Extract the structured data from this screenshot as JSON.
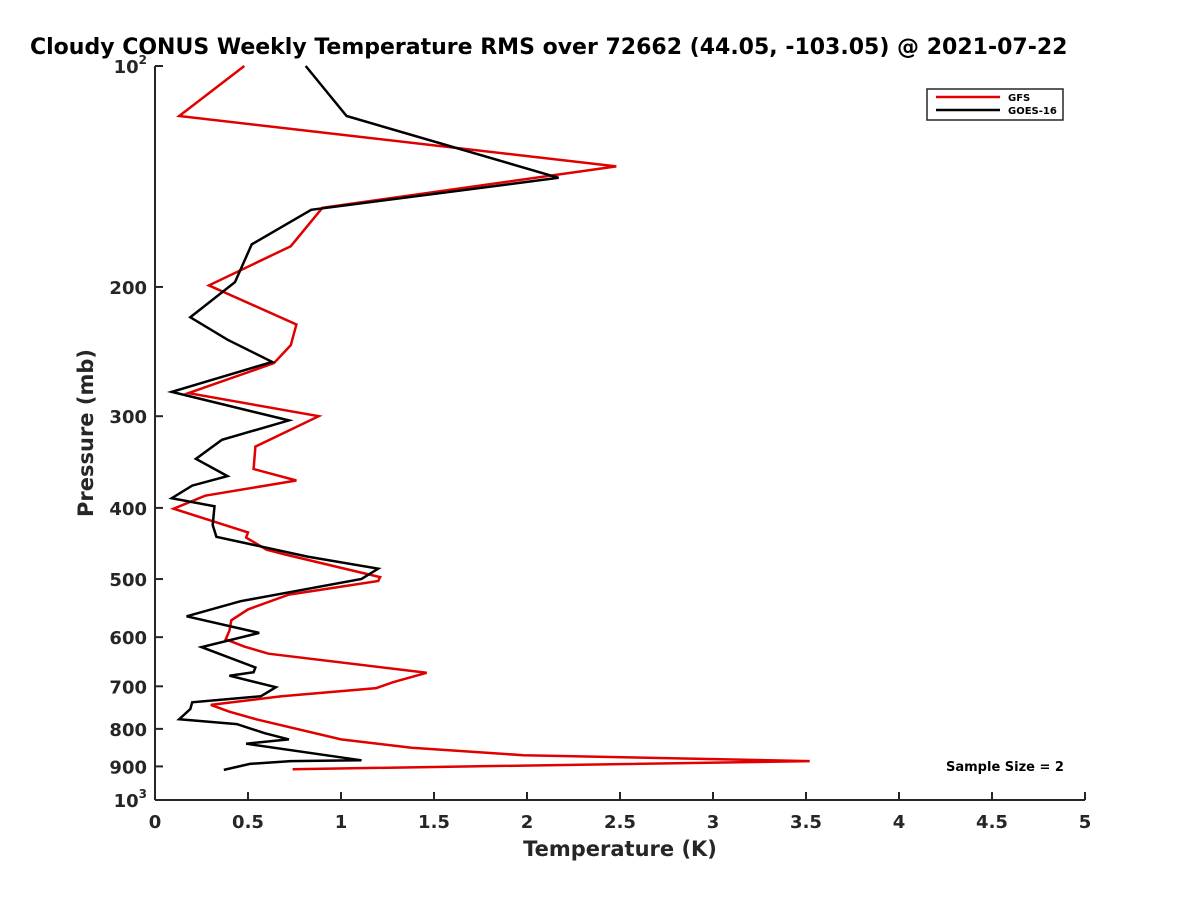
{
  "chart_data": {
    "type": "line",
    "title": "Cloudy CONUS Weekly Temperature RMS over 72662 (44.05, -103.05) @ 2021-07-22",
    "xlabel": "Temperature (K)",
    "ylabel": "Pressure (mb)",
    "xlim": [
      0,
      5
    ],
    "ylim": [
      100,
      1000
    ],
    "y_scale": "log",
    "y_reversed": true,
    "grid": false,
    "legend_position": "top-right",
    "annotation": "Sample Size = 2",
    "xticks": [
      0,
      0.5,
      1,
      1.5,
      2,
      2.5,
      3,
      3.5,
      4,
      4.5,
      5
    ],
    "xtick_labels": [
      "0",
      "0.5",
      "1",
      "1.5",
      "2",
      "2.5",
      "3",
      "3.5",
      "4",
      "4.5",
      "5"
    ],
    "yticks": [
      {
        "value": 100,
        "base": "10",
        "exp": "2"
      },
      {
        "value": 200,
        "base": "200",
        "exp": ""
      },
      {
        "value": 300,
        "base": "300",
        "exp": ""
      },
      {
        "value": 400,
        "base": "400",
        "exp": ""
      },
      {
        "value": 500,
        "base": "500",
        "exp": ""
      },
      {
        "value": 600,
        "base": "600",
        "exp": ""
      },
      {
        "value": 700,
        "base": "700",
        "exp": ""
      },
      {
        "value": 800,
        "base": "800",
        "exp": ""
      },
      {
        "value": 900,
        "base": "900",
        "exp": ""
      },
      {
        "value": 1000,
        "base": "10",
        "exp": "3"
      }
    ],
    "series": [
      {
        "name": "GFS",
        "color": "#e00000",
        "points": [
          [
            0.48,
            100
          ],
          [
            0.13,
            117
          ],
          [
            2.48,
            137
          ],
          [
            0.9,
            156
          ],
          [
            0.73,
            176
          ],
          [
            0.29,
            199
          ],
          [
            0.76,
            225
          ],
          [
            0.73,
            240
          ],
          [
            0.64,
            254
          ],
          [
            0.18,
            279
          ],
          [
            0.88,
            300
          ],
          [
            0.54,
            330
          ],
          [
            0.53,
            354
          ],
          [
            0.76,
            367
          ],
          [
            0.27,
            385
          ],
          [
            0.1,
            401
          ],
          [
            0.5,
            432
          ],
          [
            0.49,
            439
          ],
          [
            0.6,
            456
          ],
          [
            0.7,
            463
          ],
          [
            1.21,
            497
          ],
          [
            1.2,
            503
          ],
          [
            0.72,
            525
          ],
          [
            0.5,
            550
          ],
          [
            0.41,
            569
          ],
          [
            0.4,
            588
          ],
          [
            0.38,
            604
          ],
          [
            0.48,
            618
          ],
          [
            0.61,
            632
          ],
          [
            1.46,
            671
          ],
          [
            1.28,
            691
          ],
          [
            1.19,
            704
          ],
          [
            0.68,
            722
          ],
          [
            0.3,
            742
          ],
          [
            0.4,
            758
          ],
          [
            0.55,
            777
          ],
          [
            1.0,
            827
          ],
          [
            1.38,
            849
          ],
          [
            1.98,
            869
          ],
          [
            3.52,
            885
          ],
          [
            0.74,
            908
          ]
        ]
      },
      {
        "name": "GOES-16",
        "color": "#000000",
        "points": [
          [
            0.81,
            100
          ],
          [
            1.03,
            117
          ],
          [
            2.17,
            142
          ],
          [
            0.84,
            157
          ],
          [
            0.52,
            175
          ],
          [
            0.43,
            197
          ],
          [
            0.19,
            220
          ],
          [
            0.39,
            236
          ],
          [
            0.63,
            253
          ],
          [
            0.09,
            278
          ],
          [
            0.72,
            304
          ],
          [
            0.36,
            323
          ],
          [
            0.22,
            343
          ],
          [
            0.39,
            362
          ],
          [
            0.2,
            373
          ],
          [
            0.09,
            388
          ],
          [
            0.32,
            398
          ],
          [
            0.31,
            422
          ],
          [
            0.33,
            438
          ],
          [
            0.82,
            466
          ],
          [
            1.2,
            484
          ],
          [
            1.11,
            500
          ],
          [
            0.46,
            536
          ],
          [
            0.17,
            562
          ],
          [
            0.56,
            592
          ],
          [
            0.25,
            619
          ],
          [
            0.54,
            660
          ],
          [
            0.53,
            670
          ],
          [
            0.4,
            677
          ],
          [
            0.65,
            702
          ],
          [
            0.57,
            722
          ],
          [
            0.2,
            736
          ],
          [
            0.19,
            752
          ],
          [
            0.13,
            776
          ],
          [
            0.44,
            788
          ],
          [
            0.59,
            811
          ],
          [
            0.72,
            827
          ],
          [
            0.49,
            838
          ],
          [
            1.11,
            883
          ],
          [
            0.73,
            885
          ],
          [
            0.51,
            893
          ],
          [
            0.37,
            910
          ]
        ]
      }
    ]
  }
}
